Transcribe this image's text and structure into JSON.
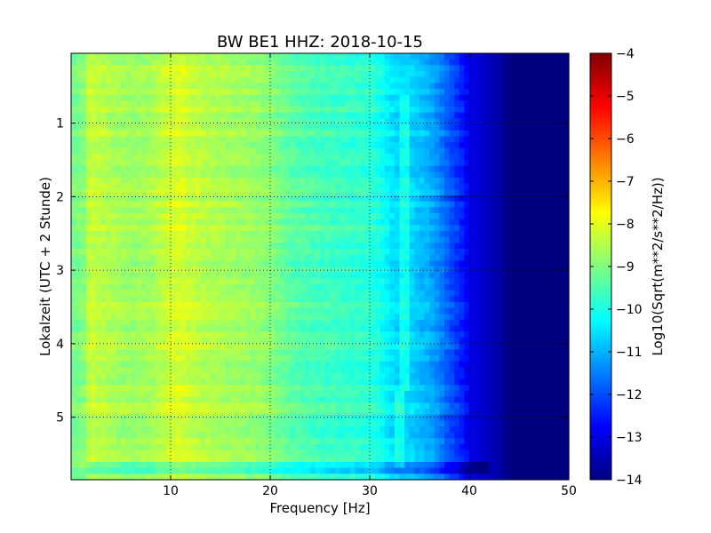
{
  "chart_data": {
    "type": "heatmap",
    "title": "BW BE1 HHZ: 2018-10-15",
    "xlabel": "Frequency [Hz]",
    "ylabel": "Lokalzeit (UTC + 2 Stunde)",
    "xlim": [
      0,
      50
    ],
    "ylim": [
      5.85,
      0.05
    ],
    "y_inverted": true,
    "x_ticks": [
      10,
      20,
      30,
      40,
      50
    ],
    "x_tick_labels": [
      "10",
      "20",
      "30",
      "40",
      "50"
    ],
    "y_ticks": [
      1,
      2,
      3,
      4,
      5
    ],
    "y_tick_labels": [
      "1",
      "2",
      "3",
      "4",
      "5"
    ],
    "grid": true,
    "colormap": "jet",
    "colorbar": {
      "label": "Log10(Sqrt(m**2/s**2/Hz))",
      "range": [
        -14,
        -4
      ],
      "ticks": [
        -4,
        -5,
        -6,
        -7,
        -8,
        -9,
        -10,
        -11,
        -12,
        -13,
        -14
      ],
      "tick_labels": [
        "−4",
        "−5",
        "−6",
        "−7",
        "−8",
        "−9",
        "−10",
        "−11",
        "−12",
        "−13",
        "−14"
      ]
    },
    "frequency_profile": {
      "frequency_hz": [
        0,
        2,
        4,
        6,
        8,
        10,
        11,
        12,
        14,
        16,
        18,
        20,
        22,
        24,
        26,
        28,
        30,
        31,
        32,
        33,
        34,
        35,
        36,
        37,
        38,
        39,
        40,
        41,
        42,
        43,
        44,
        50
      ],
      "log10_amplitude": [
        -8.6,
        -8.3,
        -8.5,
        -8.7,
        -8.6,
        -8.2,
        -8.1,
        -8.3,
        -8.5,
        -8.6,
        -8.7,
        -8.9,
        -9.3,
        -9.5,
        -9.6,
        -9.7,
        -9.8,
        -10.0,
        -10.4,
        -10.6,
        -10.6,
        -10.8,
        -11.0,
        -11.4,
        -11.9,
        -12.3,
        -12.9,
        -13.2,
        -13.4,
        -13.6,
        -14.0,
        -14.0
      ]
    },
    "features": [
      {
        "type": "line",
        "frequency_hz": 33.5,
        "time_start": 0.6,
        "time_end": 5.7
      },
      {
        "type": "quiet_band",
        "time": 5.65
      }
    ]
  }
}
